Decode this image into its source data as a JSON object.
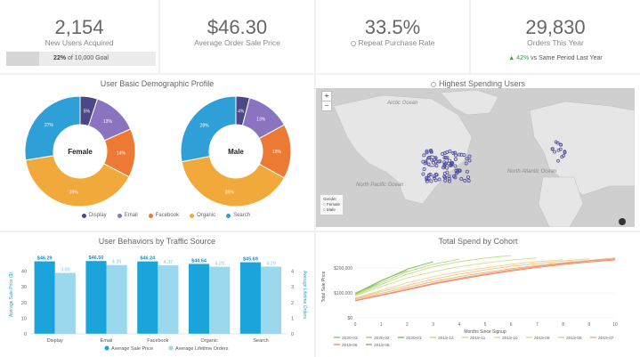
{
  "kpis": [
    {
      "value": "2,154",
      "label": "New Users Acquired"
    },
    {
      "value": "$46.30",
      "label": "Average Order Sale Price"
    },
    {
      "value": "33.5%",
      "label": "Repeat Purchase Rate"
    },
    {
      "value": "29,830",
      "label": "Orders This Year"
    }
  ],
  "goal": {
    "percent_text": "22%",
    "rest_text": "of 10,000 Goal",
    "fraction": 0.22
  },
  "orders_delta": {
    "arrow": "▲",
    "value": "42%",
    "rest": "vs Same Period Last Year"
  },
  "demographic": {
    "title": "User Basic Demographic Profile",
    "legend": [
      "Display",
      "Email",
      "Facebook",
      "Organic",
      "Search"
    ],
    "colors": {
      "Display": "#4d4687",
      "Email": "#8a74c0",
      "Facebook": "#ec7a35",
      "Organic": "#f2a93b",
      "Search": "#2f9fd8"
    }
  },
  "map": {
    "title": "Highest Spending Users",
    "zoom_in": "+",
    "zoom_out": "−",
    "labels": [
      "Arctic Ocean",
      "North Pacific Ocean",
      "North Atlantic Ocean"
    ],
    "legend_title": "Gender",
    "legend_items": [
      "Female",
      "Male"
    ]
  },
  "behavior": {
    "title": "User Behaviors by Traffic Source",
    "y_left_label": "Average Sale Price ($)",
    "y_right_label": "Average Lifetime Orders",
    "legend": [
      "Average Sale Price",
      "Average Lifetime Orders"
    ]
  },
  "cohort": {
    "title": "Total Spend by Cohort",
    "ylabel": "Total Sale Price",
    "xlabel": "Months Since Signup"
  },
  "chart_data": [
    {
      "type": "pie",
      "title": "Female",
      "labels": [
        "Display",
        "Email",
        "Facebook",
        "Organic",
        "Search"
      ],
      "values": [
        5,
        13,
        14,
        39,
        27
      ]
    },
    {
      "type": "pie",
      "title": "Male",
      "labels": [
        "Display",
        "Email",
        "Facebook",
        "Organic",
        "Search"
      ],
      "values": [
        4,
        13,
        16,
        39,
        28
      ]
    },
    {
      "type": "bar",
      "categories": [
        "Display",
        "Email",
        "Facebook",
        "Organic",
        "Search"
      ],
      "series": [
        {
          "name": "Average Sale Price",
          "values": [
            46.29,
            46.5,
            46.24,
            44.64,
            45.69
          ],
          "labels": [
            "$46.29",
            "$46.50",
            "$46.24",
            "$44.64",
            "$45.69"
          ],
          "color": "#1ba3db"
        },
        {
          "name": "Average Lifetime Orders",
          "values": [
            3.89,
            4.39,
            4.37,
            4.28,
            4.29
          ],
          "labels": [
            "3.89",
            "4.39",
            "4.37",
            "4.28",
            "4.29"
          ],
          "color": "#9bd8ee"
        }
      ],
      "ylim": [
        0,
        50
      ],
      "y_ticks": [
        0,
        10,
        20,
        30,
        40
      ],
      "y2_ticks": [
        "0",
        "1",
        "2",
        "3",
        "4"
      ]
    },
    {
      "type": "line",
      "xlabel": "Months Since Signup",
      "ylabel": "Total Sale Price",
      "x_ticks": [
        0,
        1,
        2,
        3,
        4,
        5,
        6,
        7,
        8,
        9,
        10
      ],
      "y_ticks": [
        "$0",
        "$100,000",
        "$200,000"
      ],
      "ylim": [
        0,
        250000
      ],
      "series": [
        {
          "name": "2020-03",
          "color": "#8ccd6a",
          "points": [
            [
              0,
              100000
            ],
            [
              1,
              140000
            ]
          ]
        },
        {
          "name": "2020-02",
          "color": "#a1d67c",
          "points": [
            [
              0,
              98000
            ],
            [
              1,
              150000
            ],
            [
              2,
              190000
            ]
          ]
        },
        {
          "name": "2020-01",
          "color": "#7fbf63",
          "points": [
            [
              0,
              95000
            ],
            [
              1,
              148000
            ],
            [
              2,
              195000
            ],
            [
              3,
              225000
            ]
          ]
        },
        {
          "name": "2019-12",
          "color": "#b6dd86",
          "points": [
            [
              0,
              92000
            ],
            [
              1,
              140000
            ],
            [
              2,
              185000
            ],
            [
              3,
              215000
            ],
            [
              4,
              235000
            ]
          ]
        },
        {
          "name": "2019-11",
          "color": "#c7e08c",
          "points": [
            [
              0,
              90000
            ],
            [
              1,
              133000
            ],
            [
              2,
              175000
            ],
            [
              3,
              205000
            ],
            [
              4,
              225000
            ],
            [
              5,
              240000
            ],
            [
              6,
              250000
            ]
          ]
        },
        {
          "name": "2019-10",
          "color": "#d8e19a",
          "points": [
            [
              0,
              88000
            ],
            [
              1,
              125000
            ],
            [
              2,
              160000
            ],
            [
              3,
              185000
            ],
            [
              4,
              205000
            ],
            [
              5,
              220000
            ],
            [
              6,
              232000
            ],
            [
              7,
              240000
            ]
          ]
        },
        {
          "name": "2019-09",
          "color": "#ead79a",
          "points": [
            [
              0,
              80000
            ],
            [
              1,
              110000
            ],
            [
              2,
              140000
            ],
            [
              3,
              165000
            ],
            [
              4,
              185000
            ],
            [
              5,
              200000
            ],
            [
              6,
              215000
            ],
            [
              7,
              225000
            ],
            [
              8,
              233000
            ]
          ]
        },
        {
          "name": "2019-08",
          "color": "#f0c98f",
          "points": [
            [
              0,
              78000
            ],
            [
              1,
              105000
            ],
            [
              2,
              130000
            ],
            [
              3,
              155000
            ],
            [
              4,
              175000
            ],
            [
              5,
              192000
            ],
            [
              6,
              207000
            ],
            [
              7,
              218000
            ],
            [
              8,
              228000
            ],
            [
              9,
              236000
            ]
          ]
        },
        {
          "name": "2019-07",
          "color": "#f3b27f",
          "points": [
            [
              0,
              75000
            ],
            [
              1,
              98000
            ],
            [
              2,
              122000
            ],
            [
              3,
              145000
            ],
            [
              4,
              165000
            ],
            [
              5,
              182000
            ],
            [
              6,
              197000
            ],
            [
              7,
              210000
            ],
            [
              8,
              221000
            ],
            [
              9,
              230000
            ],
            [
              10,
              240000
            ]
          ]
        },
        {
          "name": "2019-06",
          "color": "#ef9a72",
          "points": [
            [
              0,
              70000
            ],
            [
              1,
              92000
            ],
            [
              2,
              115000
            ],
            [
              3,
              138000
            ],
            [
              4,
              158000
            ],
            [
              5,
              176000
            ],
            [
              6,
              192000
            ],
            [
              7,
              206000
            ],
            [
              8,
              218000
            ],
            [
              9,
              228000
            ],
            [
              10,
              236000
            ]
          ]
        },
        {
          "name": "2019-05",
          "color": "#e98a6b",
          "points": [
            [
              0,
              68000
            ],
            [
              1,
              90000
            ],
            [
              2,
              112000
            ],
            [
              3,
              135000
            ],
            [
              4,
              154000
            ],
            [
              5,
              172000
            ],
            [
              6,
              188000
            ],
            [
              7,
              202000
            ],
            [
              8,
              214000
            ],
            [
              9,
              224000
            ],
            [
              10,
              232000
            ]
          ]
        }
      ]
    }
  ]
}
